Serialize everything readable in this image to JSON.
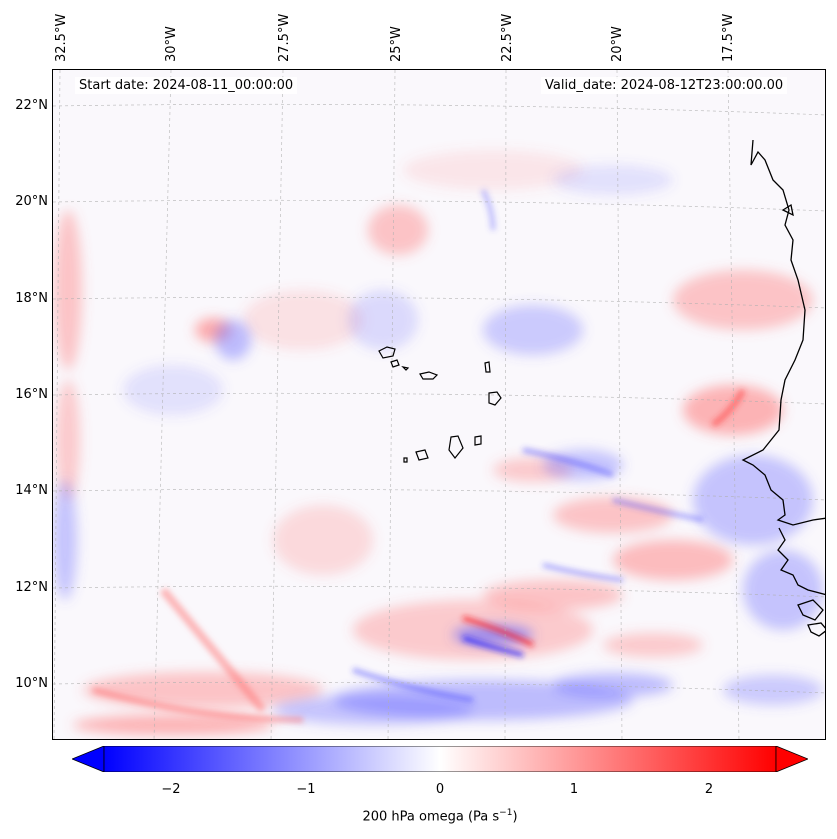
{
  "map": {
    "start_date": "Start date: 2024-08-11_00:00:00",
    "valid_date": "Valid_date: 2024-08-12T23:00:00.00",
    "longitude_labels": [
      "32.5°W",
      "30°W",
      "27.5°W",
      "25°W",
      "22.5°W",
      "20°W",
      "17.5°W"
    ],
    "latitude_labels": [
      "22°N",
      "20°N",
      "18°N",
      "16°N",
      "14°N",
      "12°N",
      "10°N"
    ],
    "extent": {
      "lon_min": -33.0,
      "lon_max": -15.3,
      "lat_min": 8.9,
      "lat_max": 22.8
    },
    "field": "200 hPa omega",
    "features": [
      "Cabo Verde islands",
      "West African coastline",
      "omega anomaly field"
    ]
  },
  "colorbar": {
    "ticks": [
      "−2",
      "−1",
      "0",
      "1",
      "2"
    ],
    "tick_values": [
      -2,
      -1,
      0,
      1,
      2
    ],
    "range": [
      -2.5,
      2.5
    ],
    "label_prefix": "200 hPa omega (Pa s",
    "label_exponent": "−1",
    "label_suffix": ")",
    "low_color": "#0000ff",
    "mid_color": "#ffffff",
    "high_color": "#ff0000"
  }
}
